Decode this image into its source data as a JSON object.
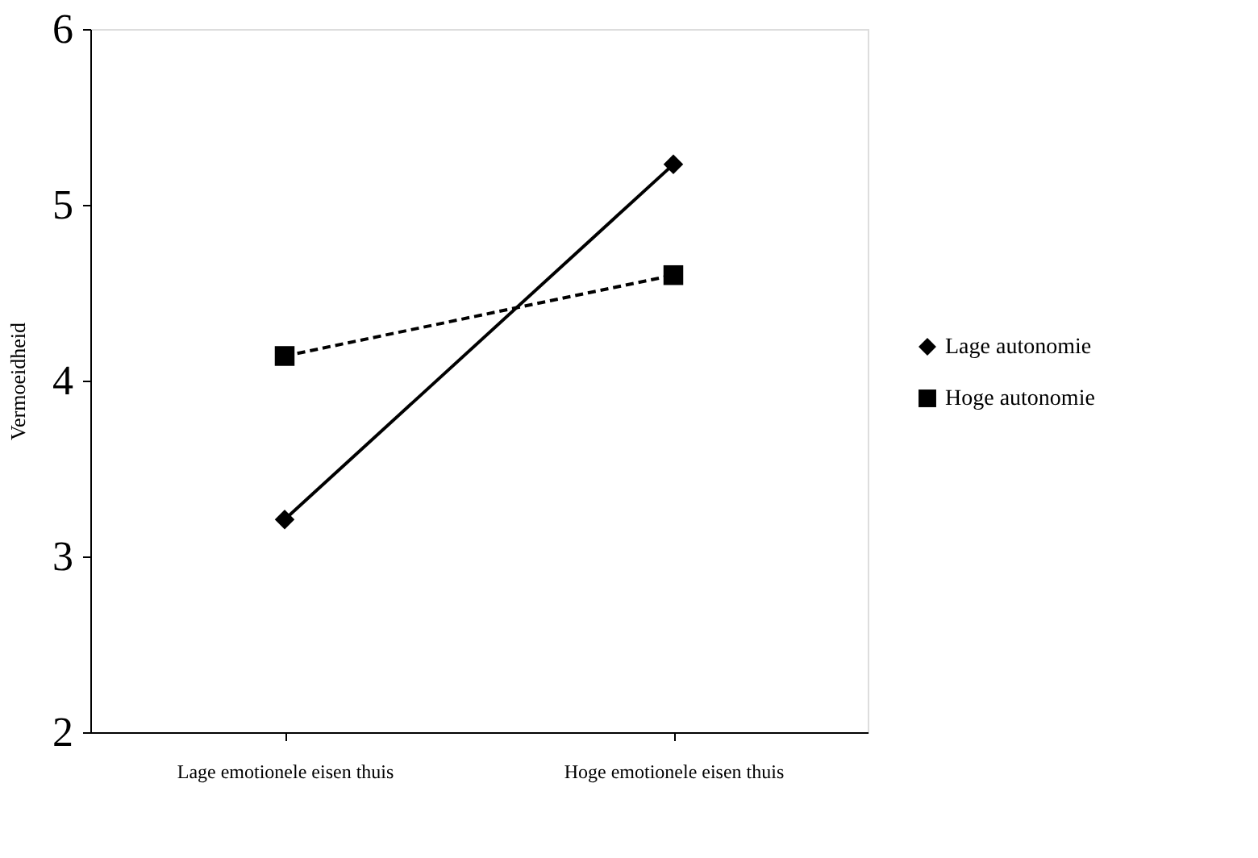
{
  "chart_data": {
    "type": "line",
    "ylabel": "Vermoeidheid",
    "categories": [
      "Lage emotionele eisen thuis",
      "Hoge emotionele eisen thuis"
    ],
    "series": [
      {
        "name": "Lage autonomie",
        "color": "#000000",
        "values": [
          3.21,
          5.23
        ],
        "marker": "diamond",
        "line_style": "solid"
      },
      {
        "name": "Hoge autonomie",
        "color": "#000000",
        "values": [
          4.14,
          4.6
        ],
        "marker": "square",
        "line_style": "dashed"
      }
    ],
    "ylim": [
      2,
      6
    ],
    "yticks": [
      2,
      3,
      4,
      5,
      6
    ],
    "grid": false,
    "legend": "right"
  }
}
